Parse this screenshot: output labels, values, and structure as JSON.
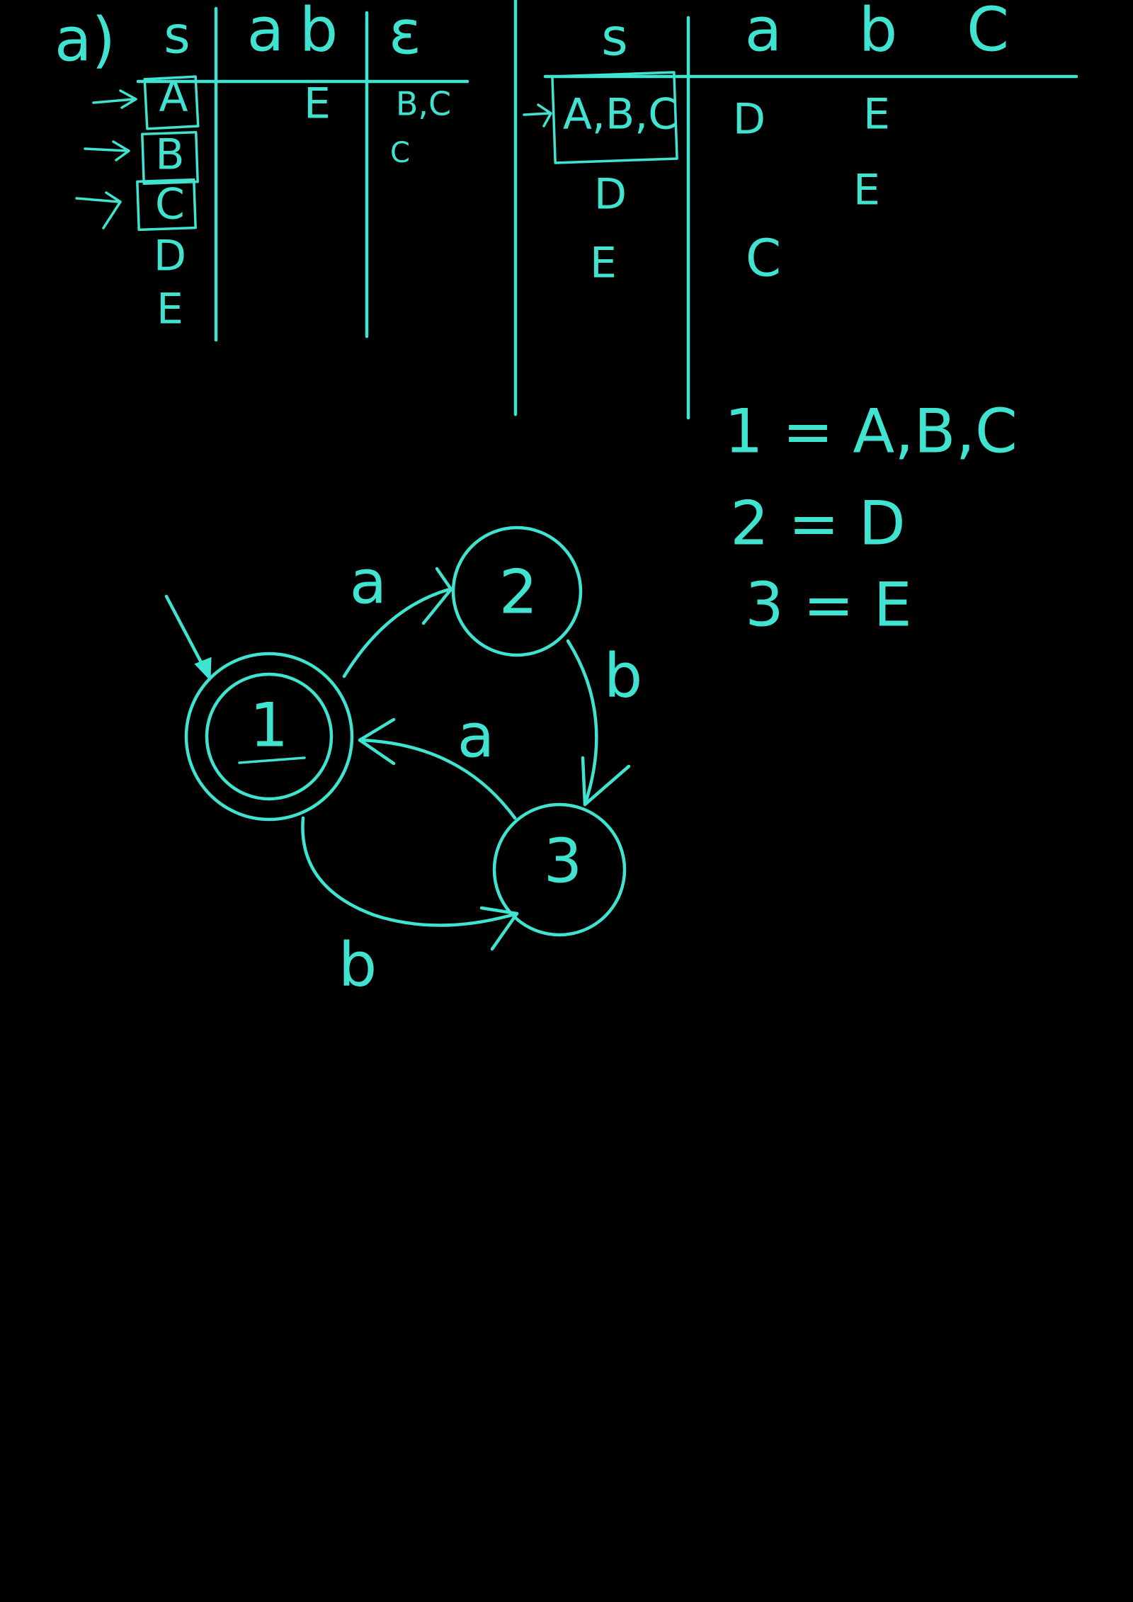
{
  "colors": {
    "ink": "#3fe3d0",
    "background": "#000000"
  },
  "nfa_table": {
    "part_label": "a)",
    "headers": {
      "state": "s",
      "a": "a",
      "b": "b",
      "epsilon": "ε"
    },
    "rows": [
      {
        "state": "A",
        "b": "E",
        "epsilon": "B,C"
      },
      {
        "state": "B",
        "epsilon": "C"
      },
      {
        "state": "C"
      },
      {
        "state": "D"
      },
      {
        "state": "E"
      }
    ]
  },
  "dfa_table": {
    "headers": {
      "state": "s",
      "a": "a",
      "b": "b",
      "c": "C"
    },
    "rows": [
      {
        "state": "A,B,C",
        "a": "D",
        "b": "E"
      },
      {
        "state": "D",
        "b": "E"
      },
      {
        "state": "E",
        "a": "C"
      }
    ]
  },
  "mapping": [
    {
      "line": "1 = A,B,C"
    },
    {
      "line": "2 = D"
    },
    {
      "line": "3 = E"
    }
  ],
  "diagram": {
    "states": [
      {
        "label": "1",
        "accepting": true,
        "initial": true
      },
      {
        "label": "2",
        "accepting": false
      },
      {
        "label": "3",
        "accepting": false
      }
    ],
    "transitions": [
      {
        "from": "1",
        "to": "2",
        "label": "a"
      },
      {
        "from": "2",
        "to": "3",
        "label": "b"
      },
      {
        "from": "3",
        "to": "1",
        "label": "a"
      },
      {
        "from": "1",
        "to": "3",
        "label": "b"
      }
    ]
  }
}
